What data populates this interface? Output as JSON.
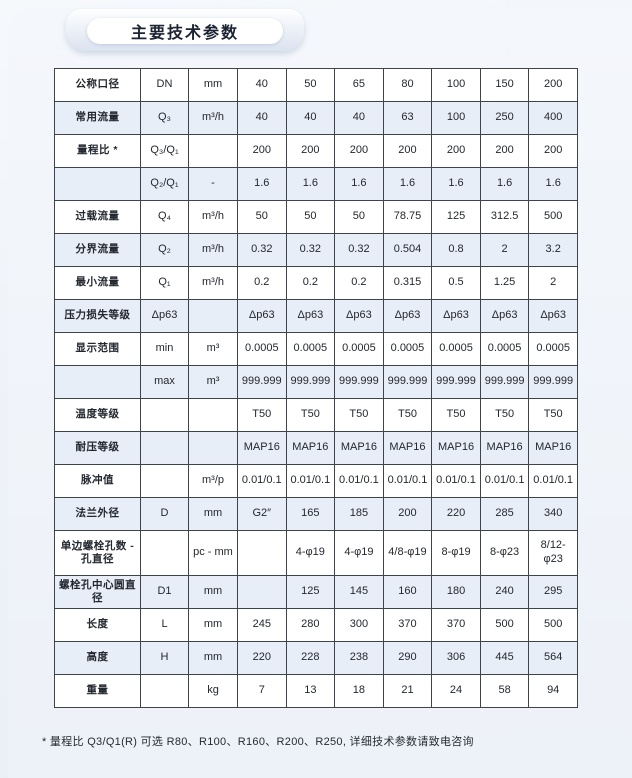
{
  "header": {
    "title": "主要技术参数"
  },
  "table": {
    "rows": [
      {
        "label": "公称口径",
        "symbol": "DN",
        "unit": "mm",
        "values": [
          "40",
          "50",
          "65",
          "80",
          "100",
          "150",
          "200"
        ]
      },
      {
        "label": "常用流量",
        "symbol": "Q₃",
        "unit": "m³/h",
        "values": [
          "40",
          "40",
          "40",
          "63",
          "100",
          "250",
          "400"
        ]
      },
      {
        "label": "量程比 *",
        "symbol": "Q₃/Q₁",
        "unit": "",
        "values": [
          "200",
          "200",
          "200",
          "200",
          "200",
          "200",
          "200"
        ]
      },
      {
        "label": "",
        "symbol": "Q₂/Q₁",
        "unit": "-",
        "values": [
          "1.6",
          "1.6",
          "1.6",
          "1.6",
          "1.6",
          "1.6",
          "1.6"
        ]
      },
      {
        "label": "过载流量",
        "symbol": "Q₄",
        "unit": "m³/h",
        "values": [
          "50",
          "50",
          "50",
          "78.75",
          "125",
          "312.5",
          "500"
        ]
      },
      {
        "label": "分界流量",
        "symbol": "Q₂",
        "unit": "m³/h",
        "values": [
          "0.32",
          "0.32",
          "0.32",
          "0.504",
          "0.8",
          "2",
          "3.2"
        ]
      },
      {
        "label": "最小流量",
        "symbol": "Q₁",
        "unit": "m³/h",
        "values": [
          "0.2",
          "0.2",
          "0.2",
          "0.315",
          "0.5",
          "1.25",
          "2"
        ]
      },
      {
        "label": "压力损失等级",
        "symbol": "Δp63",
        "unit": "",
        "values": [
          "Δp63",
          "Δp63",
          "Δp63",
          "Δp63",
          "Δp63",
          "Δp63",
          "Δp63"
        ]
      },
      {
        "label": "显示范围",
        "symbol": "min",
        "unit": "m³",
        "values": [
          "0.0005",
          "0.0005",
          "0.0005",
          "0.0005",
          "0.0005",
          "0.0005",
          "0.0005"
        ]
      },
      {
        "label": "",
        "symbol": "max",
        "unit": "m³",
        "values": [
          "999.999",
          "999.999",
          "999.999",
          "999.999",
          "999.999",
          "999.999",
          "999.999"
        ]
      },
      {
        "label": "温度等级",
        "symbol": "",
        "unit": "",
        "values": [
          "T50",
          "T50",
          "T50",
          "T50",
          "T50",
          "T50",
          "T50"
        ]
      },
      {
        "label": "耐压等级",
        "symbol": "",
        "unit": "",
        "values": [
          "MAP16",
          "MAP16",
          "MAP16",
          "MAP16",
          "MAP16",
          "MAP16",
          "MAP16"
        ]
      },
      {
        "label": "脉冲值",
        "symbol": "",
        "unit": "m³/p",
        "values": [
          "0.01/0.1",
          "0.01/0.1",
          "0.01/0.1",
          "0.01/0.1",
          "0.01/0.1",
          "0.01/0.1",
          "0.01/0.1"
        ]
      },
      {
        "label": "法兰外径",
        "symbol": "D",
        "unit": "mm",
        "values": [
          "G2″",
          "165",
          "185",
          "200",
          "220",
          "285",
          "340"
        ]
      },
      {
        "label": "单边螺栓孔数 - 孔直径",
        "symbol": "",
        "unit": "pc - mm",
        "values": [
          "",
          "4-φ19",
          "4-φ19",
          "4/8-φ19",
          "8-φ19",
          "8-φ23",
          "8/12-φ23"
        ],
        "tall": true
      },
      {
        "label": "螺栓孔中心圆直径",
        "symbol": "D1",
        "unit": "mm",
        "values": [
          "",
          "125",
          "145",
          "160",
          "180",
          "240",
          "295"
        ]
      },
      {
        "label": "长度",
        "symbol": "L",
        "unit": "mm",
        "values": [
          "245",
          "280",
          "300",
          "370",
          "370",
          "500",
          "500"
        ]
      },
      {
        "label": "高度",
        "symbol": "H",
        "unit": "mm",
        "values": [
          "220",
          "228",
          "238",
          "290",
          "306",
          "445",
          "564"
        ]
      },
      {
        "label": "重量",
        "symbol": "",
        "unit": "kg",
        "values": [
          "7",
          "13",
          "18",
          "21",
          "24",
          "58",
          "94"
        ]
      }
    ]
  },
  "footnote": {
    "text": "* 量程比 Q3/Q1(R) 可选 R80、R100、R160、R200、R250, 详细技术参数请致电咨询"
  }
}
